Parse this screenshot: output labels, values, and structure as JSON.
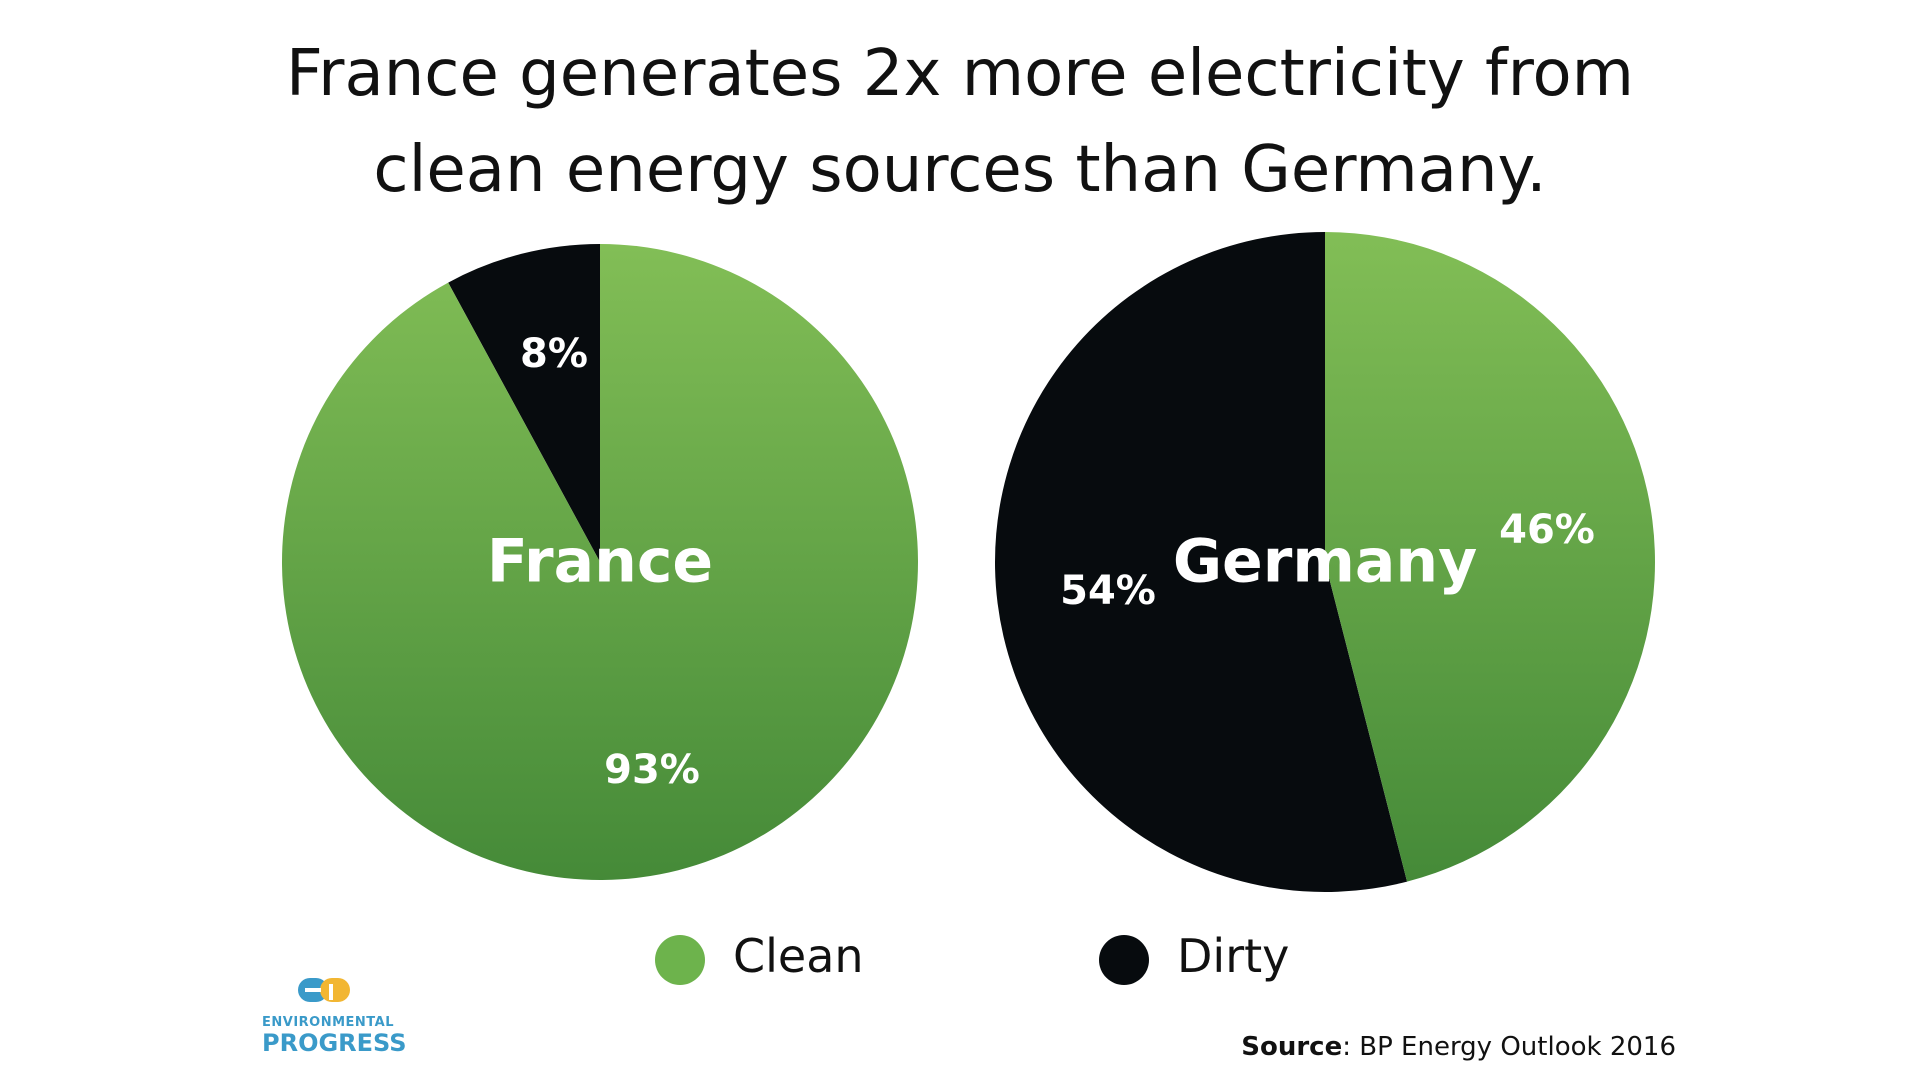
{
  "title": {
    "line1": "France generates 2x more electricity from",
    "line2": "clean energy sources than Germany."
  },
  "chart_data": [
    {
      "type": "pie",
      "title": "France",
      "slices": [
        {
          "label": "Clean",
          "value": 93,
          "display": "93%"
        },
        {
          "label": "Dirty",
          "value": 8,
          "display": "8%"
        }
      ]
    },
    {
      "type": "pie",
      "title": "Germany",
      "slices": [
        {
          "label": "Clean",
          "value": 46,
          "display": "46%"
        },
        {
          "label": "Dirty",
          "value": 54,
          "display": "54%"
        }
      ]
    }
  ],
  "legend": {
    "placement": "bottom-center",
    "items": [
      {
        "label": "Clean",
        "color": "#6db34c"
      },
      {
        "label": "Dirty",
        "color": "#070b0e"
      }
    ]
  },
  "colors": {
    "clean_top": "#82be56",
    "clean_bottom": "#458a38",
    "dirty": "#070b0e"
  },
  "source": {
    "prefix": "Source",
    "text": ": BP Energy Outlook 2016"
  },
  "logo": {
    "line1": "ENVIRONMENTAL",
    "line2": "PROGRESS"
  }
}
